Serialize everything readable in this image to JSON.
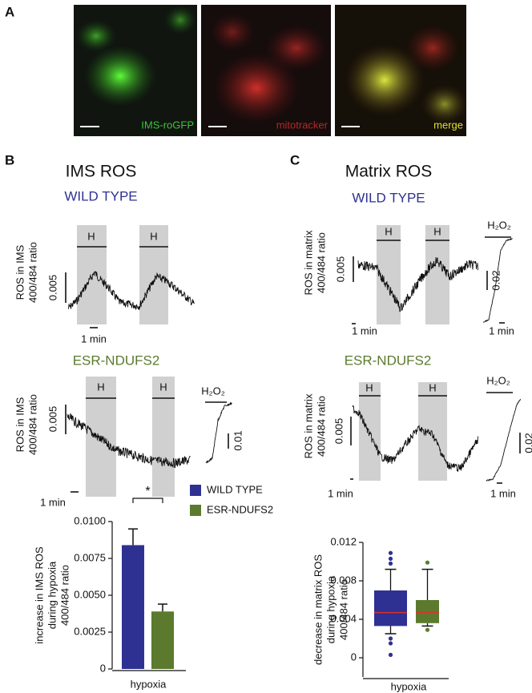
{
  "figure": {
    "panel_labels": [
      "A",
      "B",
      "C"
    ],
    "images": [
      "IMS-roGFP",
      "mitotracker",
      "merge"
    ],
    "B": {
      "title": "IMS ROS",
      "wt": {
        "label": "WILD TYPE",
        "h": [
          "H",
          "H"
        ],
        "ylabel": [
          "ROS in IMS",
          "400/484 ratio"
        ],
        "scale": "0.005",
        "time": "1 min"
      },
      "esr": {
        "label": "ESR-NDUFS2",
        "h": [
          "H",
          "H"
        ],
        "ylabel": [
          "ROS in IMS",
          "400/484 ratio"
        ],
        "scale": "0.005",
        "time": "1 min",
        "h2o2": "H₂O₂",
        "h2o2_scale": "0.01"
      }
    },
    "C": {
      "title": "Matrix ROS",
      "wt": {
        "label": "WILD TYPE",
        "h": [
          "H",
          "H"
        ],
        "ylabel": [
          "ROS in matrix",
          "400/484 ratio"
        ],
        "scale": "0.005",
        "time": [
          "1 min",
          "1 min"
        ],
        "h2o2": "H₂O₂",
        "h2o2_scale": "0.02"
      },
      "esr": {
        "label": "ESR-NDUFS2",
        "h": [
          "H",
          "H"
        ],
        "ylabel": [
          "ROS in matrix",
          "400/484 ratio"
        ],
        "scale": "0.005",
        "time": [
          "1 min",
          "1 min"
        ],
        "h2o2": "H₂O₂",
        "h2o2_scale": "0.02"
      }
    }
  },
  "chart_data": [
    {
      "type": "bar",
      "categories": [
        "hypoxia"
      ],
      "ylabel": [
        "increase in IMS ROS",
        "during hypoxia",
        "400/484 ratio"
      ],
      "series": [
        {
          "name": "WILD TYPE",
          "color": "#2e3192",
          "values": [
            0.0084
          ],
          "errors": [
            0.0011
          ]
        },
        {
          "name": "ESR-NDUFS2",
          "color": "#5b7a2e",
          "values": [
            0.0039
          ],
          "errors": [
            0.0005
          ]
        }
      ],
      "ylim": [
        0,
        0.01
      ],
      "yticks": [
        0,
        0.0025,
        {
          "value": 0.005,
          "label": "0.0050"
        },
        0.0075,
        {
          "value": 0.01,
          "label": "0.0100"
        }
      ],
      "annotation": "*",
      "legend": "right"
    },
    {
      "type": "box",
      "categories": [
        "hypoxia"
      ],
      "ylabel": [
        "decrease in matrix ROS",
        "during hypoxia",
        "400/484 ratio"
      ],
      "median_color": "#e0302a",
      "series": [
        {
          "color": "#2e3192",
          "whisker_low": 0.0025,
          "q1": 0.0033,
          "median": 0.0047,
          "q3": 0.007,
          "whisker_high": 0.0092,
          "outliers": [
            0.0098,
            0.0103,
            0.0109,
            0.002,
            0.0015,
            0.0003
          ]
        },
        {
          "color": "#5b7a2e",
          "whisker_low": 0.0033,
          "q1": 0.0036,
          "median": 0.0047,
          "q3": 0.006,
          "whisker_high": 0.0092,
          "outliers": [
            0.0099,
            0.0029
          ]
        }
      ],
      "ylim": [
        -0.002,
        0.012
      ],
      "yticks": [
        0,
        0.004,
        0.008,
        0.012
      ]
    }
  ]
}
